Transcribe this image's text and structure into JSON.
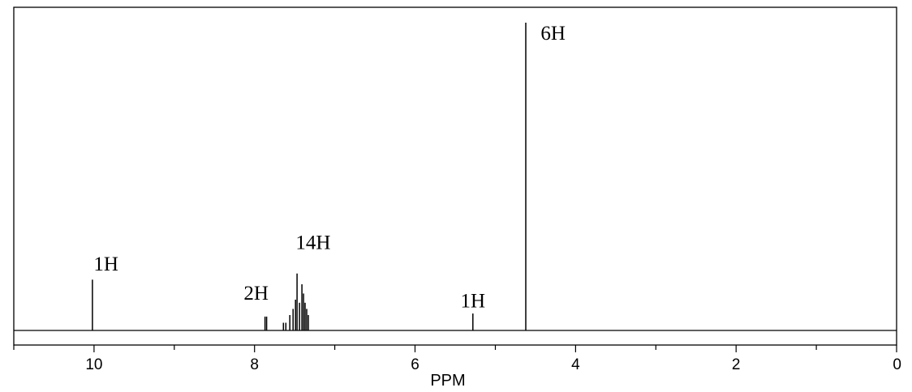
{
  "chart_data": {
    "type": "line",
    "title": "",
    "xlabel": "PPM",
    "ylabel": "",
    "xlim": [
      11,
      0
    ],
    "x_reversed": true,
    "grid": false,
    "x_ticks": [
      10,
      8,
      6,
      4,
      2,
      0
    ],
    "x_tick_labels": [
      "10",
      "8",
      "6",
      "4",
      "2",
      "0"
    ],
    "series": [
      {
        "peaks": [
          {
            "ppm": 10.02,
            "height": 0.165
          },
          {
            "ppm": 7.87,
            "height": 0.045
          },
          {
            "ppm": 7.85,
            "height": 0.045
          },
          {
            "ppm": 7.64,
            "height": 0.025
          },
          {
            "ppm": 7.61,
            "height": 0.025
          },
          {
            "ppm": 7.56,
            "height": 0.05
          },
          {
            "ppm": 7.52,
            "height": 0.07
          },
          {
            "ppm": 7.49,
            "height": 0.1
          },
          {
            "ppm": 7.47,
            "height": 0.185
          },
          {
            "ppm": 7.44,
            "height": 0.09
          },
          {
            "ppm": 7.41,
            "height": 0.15
          },
          {
            "ppm": 7.39,
            "height": 0.12
          },
          {
            "ppm": 7.37,
            "height": 0.09
          },
          {
            "ppm": 7.35,
            "height": 0.07
          },
          {
            "ppm": 7.33,
            "height": 0.05
          },
          {
            "ppm": 5.28,
            "height": 0.055
          },
          {
            "ppm": 4.62,
            "height": 1.0
          }
        ]
      }
    ],
    "annotations": [
      {
        "text": "1H",
        "ppm": 9.85,
        "height": 0.195
      },
      {
        "text": "2H",
        "ppm": 7.98,
        "height": 0.1
      },
      {
        "text": "14H",
        "ppm": 7.27,
        "height": 0.265
      },
      {
        "text": "1H",
        "ppm": 5.28,
        "height": 0.075
      },
      {
        "text": "6H",
        "ppm": 4.28,
        "height": 0.945
      }
    ]
  }
}
